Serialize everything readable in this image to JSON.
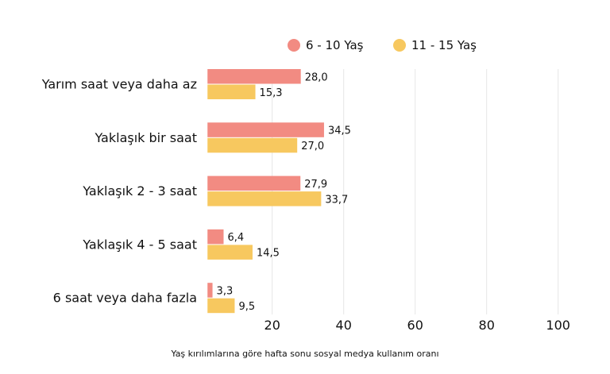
{
  "chart_data": {
    "type": "bar",
    "orientation": "horizontal",
    "categories": [
      "Yarım saat veya daha az",
      "Yaklaşık bir saat",
      "Yaklaşık 2 - 3 saat",
      "Yaklaşık 4 - 5 saat",
      "6 saat veya daha fazla"
    ],
    "series": [
      {
        "name": "6 - 10 Yaş",
        "color": "#F28B82",
        "values": [
          28.0,
          34.5,
          27.9,
          6.4,
          3.3
        ],
        "labels": [
          "28,0",
          "34,5",
          "27,9",
          "6,4",
          "3,3"
        ]
      },
      {
        "name": "11 - 15 Yaş",
        "color": "#F7C85F",
        "values": [
          15.3,
          27.0,
          33.7,
          14.5,
          9.5
        ],
        "labels": [
          "15,3",
          "27,0",
          "33,7",
          "14,5",
          "9,5"
        ]
      }
    ],
    "xticks": [
      20,
      40,
      60,
      80,
      100
    ],
    "xlim": [
      1.9,
      100
    ],
    "grid": true,
    "legend_position": "top-right",
    "caption": "Yaş kırılımlarına göre hafta sonu sosyal medya kullanım oranı"
  }
}
